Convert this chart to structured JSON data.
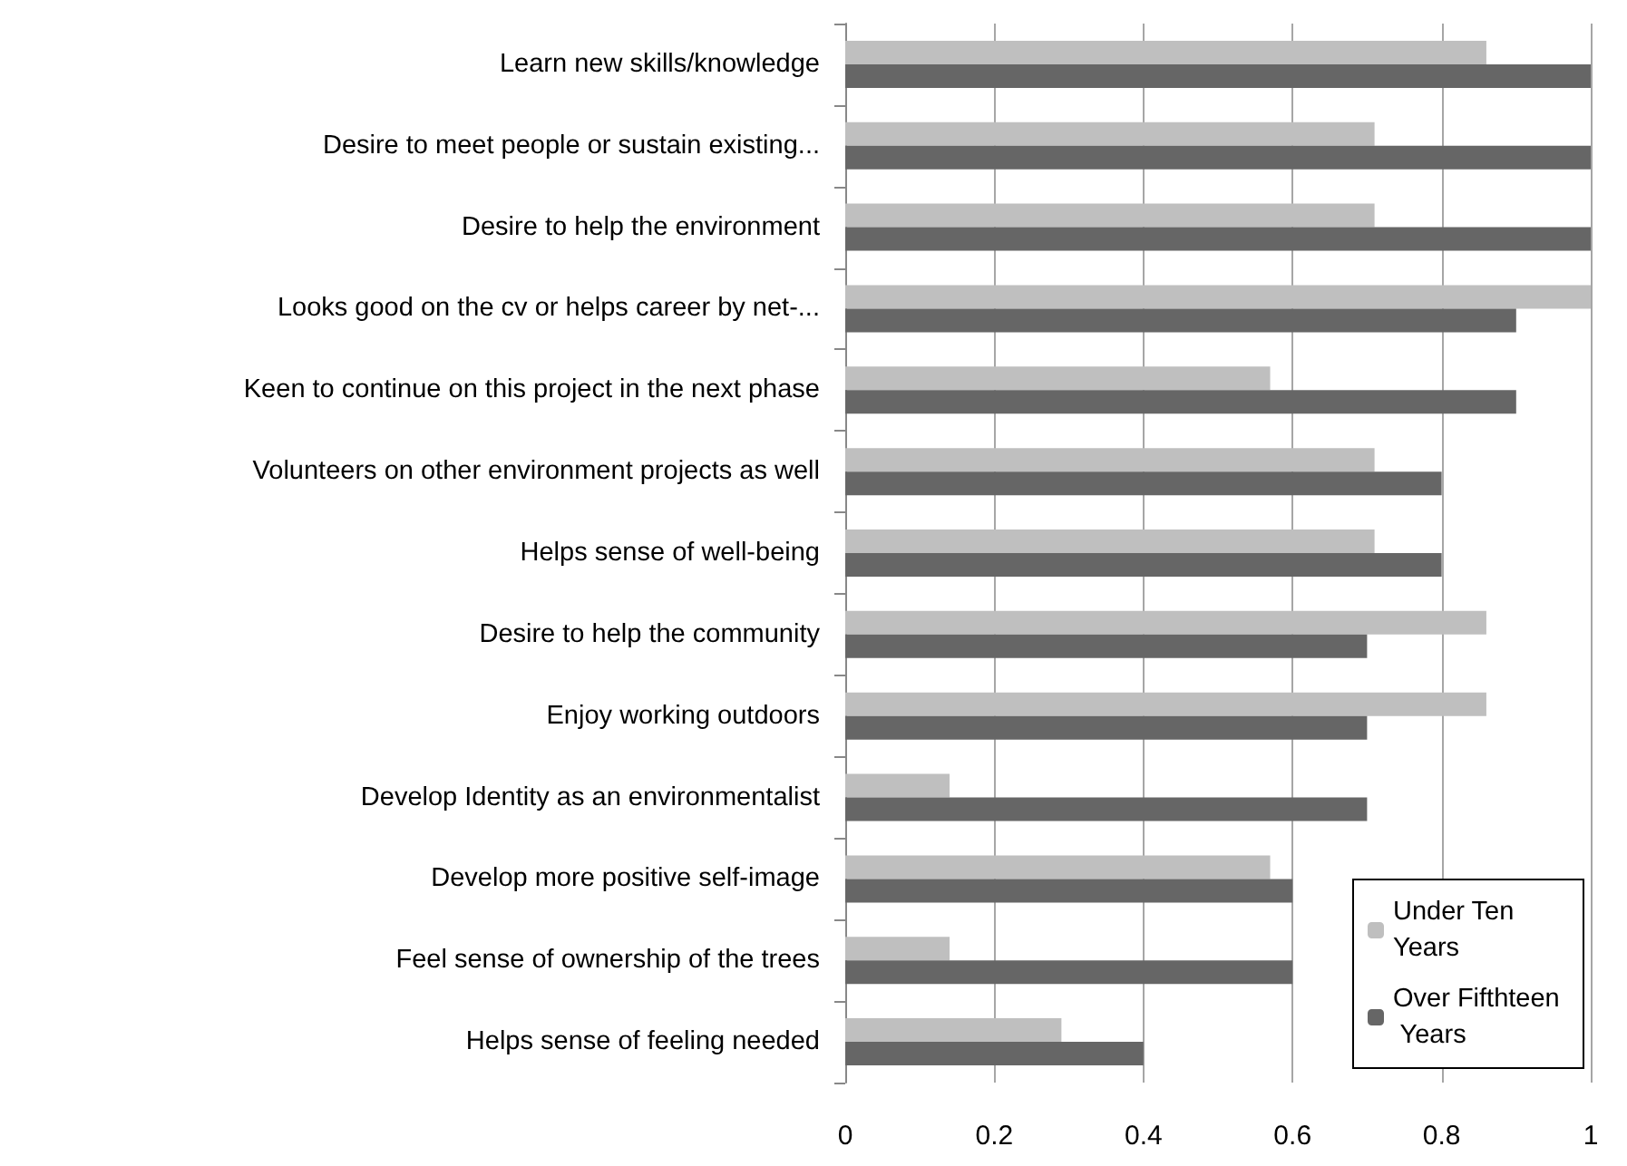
{
  "chart_data": {
    "type": "bar",
    "orientation": "horizontal",
    "categories": [
      "Learn new skills/knowledge",
      "Desire to meet people or sustain existing...",
      "Desire to help the environment",
      "Looks good on the cv or helps career by net-...",
      "Keen to continue on this project in the next phase",
      "Volunteers on other environment projects as well",
      "Helps sense of well-being",
      "Desire to help the community",
      "Enjoy working outdoors",
      "Develop Identity as an environmentalist",
      "Develop more positive self-image",
      "Feel sense of ownership of the trees",
      "Helps sense of feeling needed"
    ],
    "series": [
      {
        "name": "Under Ten Years",
        "color": "#bfbfbf",
        "values": [
          0.86,
          0.71,
          0.71,
          1,
          0.57,
          0.71,
          0.71,
          0.86,
          0.86,
          0.14,
          0.57,
          0.14,
          0.29
        ]
      },
      {
        "name": "Over Fifthteen Years",
        "color": "#666666",
        "values": [
          1,
          1,
          1,
          0.9,
          0.9,
          0.8,
          0.8,
          0.7,
          0.7,
          0.7,
          0.6,
          0.6,
          0.4
        ]
      }
    ],
    "xlim": [
      0,
      1
    ],
    "xticks": [
      0,
      0.2,
      0.4,
      0.6,
      0.8,
      1
    ],
    "grid": "x",
    "legend": "bottom right"
  }
}
